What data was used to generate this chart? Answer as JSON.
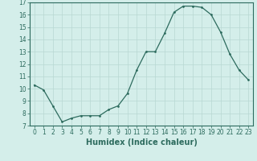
{
  "x": [
    0,
    1,
    2,
    3,
    4,
    5,
    6,
    7,
    8,
    9,
    10,
    11,
    12,
    13,
    14,
    15,
    16,
    17,
    18,
    19,
    20,
    21,
    22,
    23
  ],
  "y": [
    10.3,
    9.9,
    8.6,
    7.3,
    7.6,
    7.8,
    7.8,
    7.8,
    8.3,
    8.6,
    9.6,
    11.5,
    13.0,
    13.0,
    14.5,
    16.2,
    16.7,
    16.7,
    16.6,
    16.0,
    14.6,
    12.8,
    11.5,
    10.7
  ],
  "xlim": [
    -0.5,
    23.5
  ],
  "ylim": [
    7,
    17
  ],
  "yticks": [
    7,
    8,
    9,
    10,
    11,
    12,
    13,
    14,
    15,
    16,
    17
  ],
  "xticks": [
    0,
    1,
    2,
    3,
    4,
    5,
    6,
    7,
    8,
    9,
    10,
    11,
    12,
    13,
    14,
    15,
    16,
    17,
    18,
    19,
    20,
    21,
    22,
    23
  ],
  "xlabel": "Humidex (Indice chaleur)",
  "line_color": "#2d6b5e",
  "marker_color": "#2d6b5e",
  "bg_color": "#d4eeea",
  "grid_color": "#b8d8d2",
  "tick_label_fontsize": 5.5,
  "xlabel_fontsize": 7,
  "xlabel_fontweight": "bold"
}
